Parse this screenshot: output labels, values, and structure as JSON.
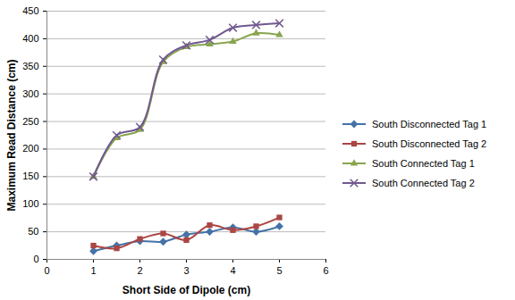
{
  "chart_data": {
    "type": "line",
    "x_label": "Short Side of Dipole (cm)",
    "y_label": "Maximum Read Distance (cm)",
    "x": [
      1,
      1.5,
      2,
      2.5,
      3,
      3.5,
      4,
      4.5,
      5
    ],
    "series": [
      {
        "name": "South Disconnected Tag 1",
        "color": "#4572a7",
        "marker": "diamond",
        "values": [
          15,
          25,
          33,
          32,
          45,
          50,
          58,
          50,
          60
        ]
      },
      {
        "name": "South Disconnected Tag 2",
        "color": "#aa4643",
        "marker": "square",
        "values": [
          25,
          20,
          37,
          47,
          35,
          62,
          53,
          60,
          76
        ]
      },
      {
        "name": "South Connected Tag 1",
        "color": "#89a54e",
        "marker": "triangle",
        "values": [
          150,
          220,
          235,
          358,
          385,
          390,
          395,
          410,
          407
        ]
      },
      {
        "name": "South Connected Tag 2",
        "color": "#71588f",
        "marker": "x",
        "values": [
          150,
          225,
          240,
          362,
          388,
          398,
          420,
          425,
          428
        ]
      }
    ],
    "xlim": [
      0,
      6
    ],
    "xticks": [
      0,
      1,
      2,
      3,
      4,
      5,
      6
    ],
    "ylim": [
      0,
      450
    ],
    "yticks": [
      0,
      50,
      100,
      150,
      200,
      250,
      300,
      350,
      400,
      450
    ],
    "grid": true,
    "legend": "right"
  }
}
